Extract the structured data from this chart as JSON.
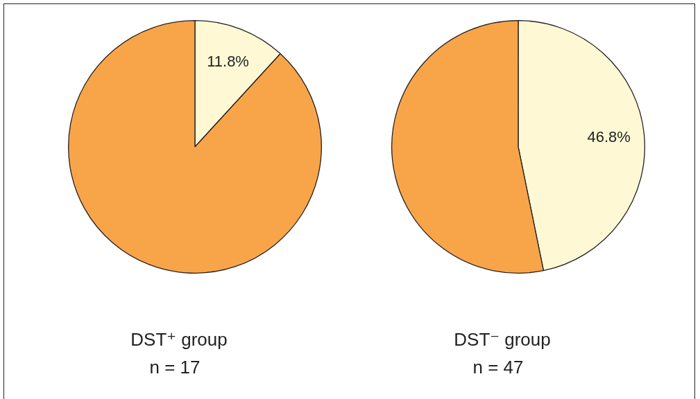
{
  "chart_data": [
    {
      "type": "pie",
      "title": "DST⁺ group",
      "subtitle": "n = 17",
      "categories": [
        null,
        null
      ],
      "values": [
        11.8,
        88.2
      ],
      "colors": [
        "#fef9d4",
        "#f8a54a"
      ],
      "value_labels": [
        "11.8%",
        null
      ],
      "legend": false
    },
    {
      "type": "pie",
      "title": "DST⁻ group",
      "subtitle": "n = 47",
      "categories": [
        null,
        null
      ],
      "values": [
        46.8,
        53.2
      ],
      "colors": [
        "#fef9d4",
        "#f8a54a"
      ],
      "value_labels": [
        "46.8%",
        null
      ],
      "legend": false
    }
  ]
}
